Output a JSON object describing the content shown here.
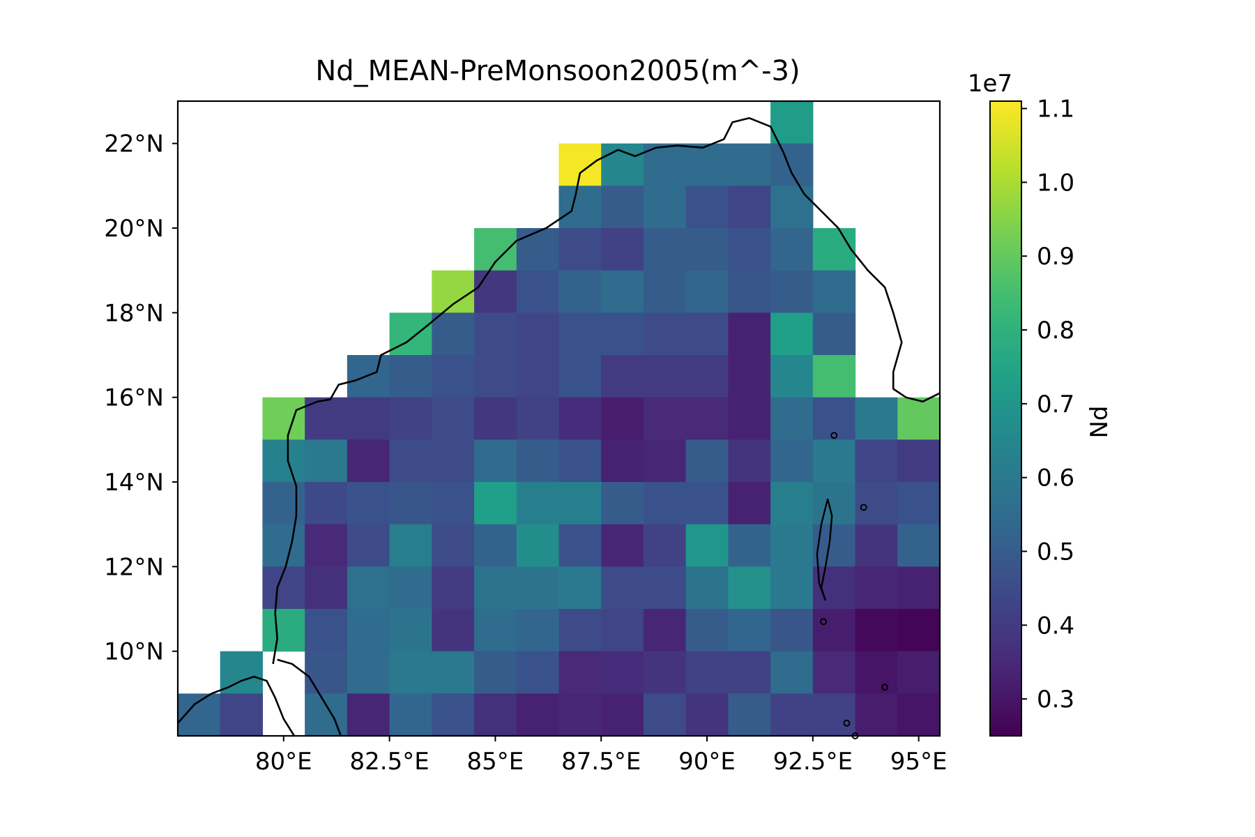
{
  "chart_data": {
    "type": "heatmap",
    "title": "Nd_MEAN-PreMonsoon2005(m^-3)",
    "xlabel": "",
    "ylabel": "",
    "xlim": [
      77.5,
      95.5
    ],
    "ylim": [
      8,
      23
    ],
    "x_ticks": [
      80,
      82.5,
      85,
      87.5,
      90,
      92.5,
      95
    ],
    "x_tick_labels": [
      "80°E",
      "82.5°E",
      "85°E",
      "87.5°E",
      "90°E",
      "92.5°E",
      "95°E"
    ],
    "y_ticks": [
      10,
      12,
      14,
      16,
      18,
      20,
      22
    ],
    "y_tick_labels": [
      "10°N",
      "12°N",
      "14°N",
      "16°N",
      "18°N",
      "20°N",
      "22°N"
    ],
    "cell_lon_edges": [
      77.5,
      78.5,
      79.5,
      80.5,
      81.5,
      82.5,
      83.5,
      84.5,
      85.5,
      86.5,
      87.5,
      88.5,
      89.5,
      90.5,
      91.5,
      92.5,
      93.5,
      94.5,
      95.5
    ],
    "cell_lat_edges": [
      8,
      9,
      10,
      11,
      12,
      13,
      14,
      15,
      16,
      17,
      18,
      19,
      20,
      21,
      22,
      23
    ],
    "grid_rows_north_to_south": [
      [
        null,
        null,
        null,
        null,
        null,
        null,
        null,
        null,
        null,
        null,
        null,
        null,
        null,
        null,
        0.72,
        null,
        null,
        null
      ],
      [
        null,
        null,
        null,
        null,
        null,
        null,
        null,
        null,
        null,
        1.1,
        0.65,
        0.55,
        0.55,
        0.55,
        0.52,
        null,
        null,
        null
      ],
      [
        null,
        null,
        null,
        null,
        null,
        null,
        null,
        null,
        null,
        0.55,
        0.5,
        0.55,
        0.47,
        0.43,
        0.57,
        null,
        null,
        null
      ],
      [
        null,
        null,
        null,
        null,
        null,
        null,
        null,
        0.85,
        0.5,
        0.45,
        0.42,
        0.5,
        0.5,
        0.47,
        0.53,
        0.78,
        null,
        null
      ],
      [
        null,
        null,
        null,
        null,
        null,
        null,
        0.97,
        0.39,
        0.47,
        0.52,
        0.55,
        0.5,
        0.53,
        0.48,
        0.5,
        0.55,
        null,
        null
      ],
      [
        null,
        null,
        null,
        null,
        null,
        0.82,
        0.5,
        0.45,
        0.43,
        0.47,
        0.47,
        0.45,
        0.45,
        0.33,
        0.73,
        0.5,
        null,
        null
      ],
      [
        null,
        null,
        null,
        null,
        0.53,
        0.5,
        0.47,
        0.45,
        0.43,
        0.47,
        0.4,
        0.4,
        0.4,
        0.33,
        0.65,
        0.85,
        null,
        null
      ],
      [
        null,
        null,
        0.92,
        0.4,
        0.4,
        0.42,
        0.45,
        0.39,
        0.42,
        0.36,
        0.32,
        0.35,
        0.35,
        0.33,
        0.55,
        0.47,
        0.6,
        0.9
      ],
      [
        null,
        null,
        0.63,
        0.6,
        0.34,
        0.45,
        0.45,
        0.55,
        0.5,
        0.47,
        0.33,
        0.34,
        0.5,
        0.38,
        0.53,
        0.6,
        0.43,
        0.4
      ],
      [
        null,
        null,
        0.52,
        0.44,
        0.47,
        0.48,
        0.47,
        0.73,
        0.62,
        0.62,
        0.5,
        0.47,
        0.47,
        0.33,
        0.62,
        0.58,
        0.45,
        0.47
      ],
      [
        null,
        null,
        0.55,
        0.35,
        0.45,
        0.62,
        0.45,
        0.52,
        0.67,
        0.47,
        0.34,
        0.42,
        0.7,
        0.52,
        0.6,
        0.5,
        0.38,
        0.52
      ],
      [
        null,
        null,
        0.43,
        0.37,
        0.57,
        0.55,
        0.4,
        0.58,
        0.58,
        0.6,
        0.45,
        0.45,
        0.58,
        0.68,
        0.6,
        0.37,
        0.34,
        0.33
      ],
      [
        null,
        null,
        0.78,
        0.47,
        0.55,
        0.58,
        0.38,
        0.55,
        0.53,
        0.45,
        0.43,
        0.34,
        0.5,
        0.53,
        0.48,
        0.32,
        0.27,
        0.26
      ],
      [
        null,
        0.65,
        null,
        0.48,
        0.55,
        0.6,
        0.6,
        0.5,
        0.47,
        0.35,
        0.36,
        0.38,
        0.42,
        0.42,
        0.55,
        0.35,
        0.3,
        0.32
      ],
      [
        0.53,
        0.43,
        null,
        0.55,
        0.34,
        0.53,
        0.47,
        0.37,
        0.33,
        0.34,
        0.33,
        0.45,
        0.38,
        0.5,
        0.42,
        0.42,
        0.32,
        0.3
      ]
    ],
    "colorbar": {
      "label": "Nd",
      "multiplier": "1e7",
      "min": 0.25,
      "max": 1.11,
      "ticks": [
        0.3,
        0.4,
        0.5,
        0.6,
        0.7,
        0.8,
        0.9,
        1.0,
        1.1
      ],
      "tick_labels": [
        "0.3",
        "0.4",
        "0.5",
        "0.6",
        "0.7",
        "0.8",
        "0.9",
        "1.0",
        "1.1"
      ],
      "colormap": "viridis"
    },
    "coastline_color": "#000000",
    "grid": false
  }
}
